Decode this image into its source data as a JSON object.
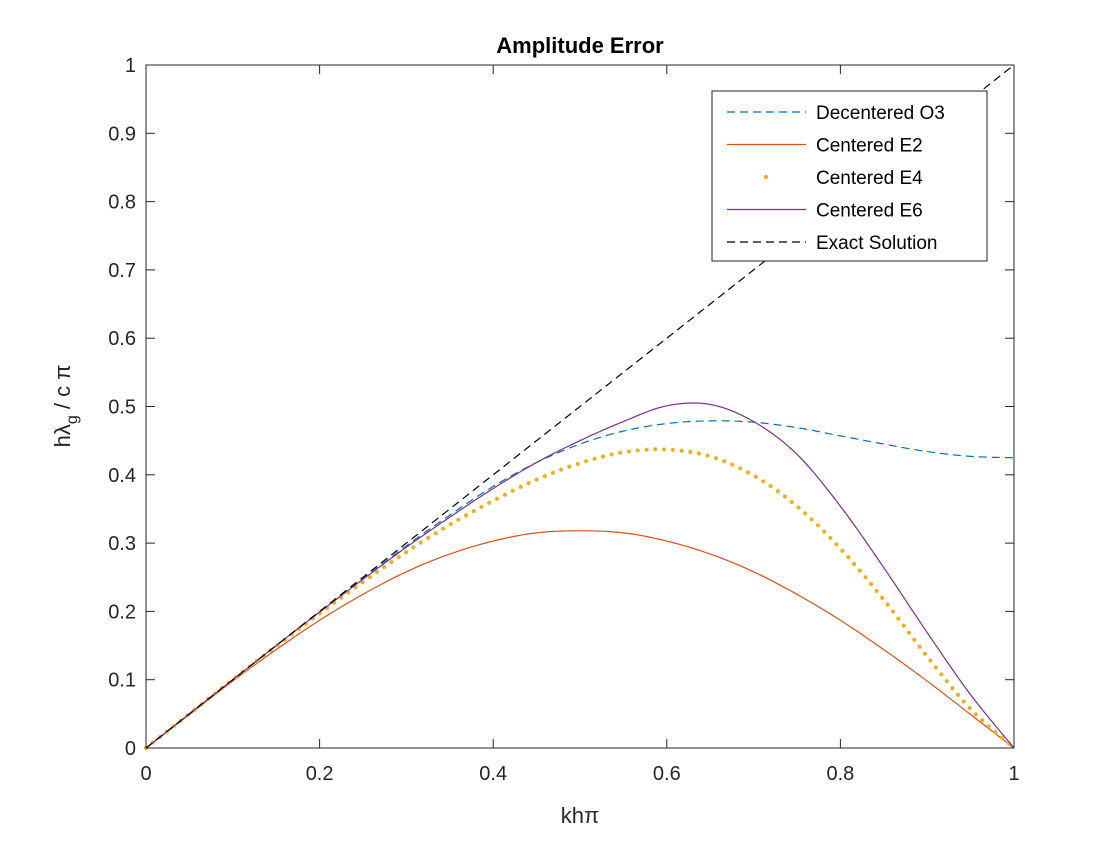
{
  "chart_data": {
    "type": "line",
    "title": "Amplitude Error",
    "xlabel": "khπ",
    "ylabel": {
      "main": "hλ",
      "subscript": "g",
      "rest": " / c π"
    },
    "xlim": [
      0,
      1
    ],
    "ylim": [
      0,
      1
    ],
    "xticks": [
      0,
      0.2,
      0.4,
      0.6,
      0.8,
      1
    ],
    "xtick_labels": [
      "0",
      "0.2",
      "0.4",
      "0.6",
      "0.8",
      "1"
    ],
    "yticks": [
      0,
      0.1,
      0.2,
      0.3,
      0.4,
      0.5,
      0.6,
      0.7,
      0.8,
      0.9,
      1
    ],
    "ytick_labels": [
      "0",
      "0.1",
      "0.2",
      "0.3",
      "0.4",
      "0.5",
      "0.6",
      "0.7",
      "0.8",
      "0.9",
      "1"
    ],
    "grid": false,
    "legend_position": "top-right",
    "series": [
      {
        "name": "Decentered O3",
        "color": "#0072BD",
        "style": "dashed",
        "x": [
          0,
          0.05,
          0.1,
          0.15,
          0.2,
          0.25,
          0.3,
          0.35,
          0.4,
          0.45,
          0.5,
          0.55,
          0.6,
          0.65,
          0.7,
          0.75,
          0.8,
          0.85,
          0.9,
          0.95,
          1.0
        ],
        "y": [
          0,
          0.05,
          0.1,
          0.15,
          0.199,
          0.248,
          0.296,
          0.341,
          0.383,
          0.418,
          0.445,
          0.464,
          0.475,
          0.479,
          0.477,
          0.469,
          0.457,
          0.445,
          0.434,
          0.427,
          0.425
        ]
      },
      {
        "name": "Centered E2",
        "color": "#D95319",
        "style": "solid",
        "x": [
          0,
          0.05,
          0.1,
          0.15,
          0.2,
          0.25,
          0.3,
          0.35,
          0.4,
          0.45,
          0.5,
          0.55,
          0.6,
          0.65,
          0.7,
          0.75,
          0.8,
          0.85,
          0.9,
          0.95,
          1.0
        ],
        "y": [
          0,
          0.049,
          0.098,
          0.144,
          0.187,
          0.225,
          0.258,
          0.284,
          0.303,
          0.315,
          0.318,
          0.315,
          0.303,
          0.284,
          0.258,
          0.225,
          0.187,
          0.144,
          0.098,
          0.049,
          0
        ]
      },
      {
        "name": "Centered E4",
        "color": "#EDB120",
        "style": "dotted",
        "x": [
          0,
          0.05,
          0.1,
          0.15,
          0.2,
          0.25,
          0.3,
          0.35,
          0.4,
          0.45,
          0.5,
          0.55,
          0.6,
          0.65,
          0.7,
          0.75,
          0.8,
          0.85,
          0.9,
          0.95,
          1.0
        ],
        "y": [
          0,
          0.05,
          0.1,
          0.149,
          0.197,
          0.243,
          0.287,
          0.327,
          0.362,
          0.393,
          0.417,
          0.433,
          0.437,
          0.427,
          0.399,
          0.354,
          0.292,
          0.217,
          0.134,
          0.057,
          0
        ]
      },
      {
        "name": "Centered E6",
        "color": "#7E2F8E",
        "style": "solid",
        "x": [
          0,
          0.05,
          0.1,
          0.15,
          0.2,
          0.25,
          0.3,
          0.35,
          0.4,
          0.45,
          0.5,
          0.55,
          0.6,
          0.65,
          0.7,
          0.75,
          0.8,
          0.85,
          0.9,
          0.95,
          1.0
        ],
        "y": [
          0,
          0.05,
          0.1,
          0.15,
          0.199,
          0.247,
          0.294,
          0.338,
          0.38,
          0.418,
          0.45,
          0.478,
          0.501,
          0.503,
          0.478,
          0.43,
          0.354,
          0.264,
          0.169,
          0.078,
          0
        ]
      },
      {
        "name": "Exact Solution",
        "color": "#000000",
        "style": "dashed",
        "x": [
          0,
          1
        ],
        "y": [
          0,
          1
        ]
      }
    ]
  }
}
